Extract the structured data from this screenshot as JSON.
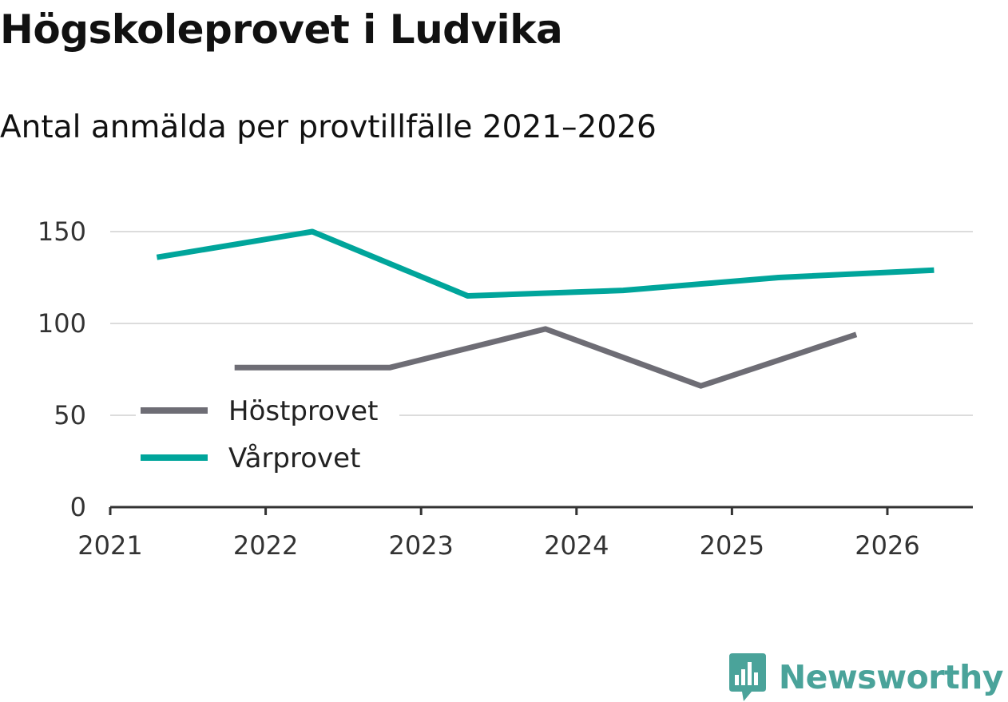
{
  "title": "Högskoleprovet i Ludvika",
  "subtitle": "Antal anmälda per provtillfälle 2021–2026",
  "brand": {
    "name": "Newsworthy",
    "color": "#4aa39a"
  },
  "chart_data": {
    "type": "line",
    "title": "Högskoleprovet i Ludvika",
    "subtitle": "Antal anmälda per provtillfälle 2021–2026",
    "xlabel": "",
    "ylabel": "",
    "x_ticks": [
      "2021",
      "2022",
      "2023",
      "2024",
      "2025",
      "2026"
    ],
    "y_ticks": [
      "0",
      "50",
      "100",
      "150"
    ],
    "xlim": [
      2021,
      2026.55
    ],
    "ylim": [
      0,
      150
    ],
    "grid": true,
    "legend_position": "bottom-left",
    "series": [
      {
        "name": "Höstprovet",
        "color": "#6e6d75",
        "x": [
          2021.8,
          2022.8,
          2023.8,
          2024.8,
          2025.8
        ],
        "y": [
          76,
          76,
          97,
          66,
          94
        ]
      },
      {
        "name": "Vårprovet",
        "color": "#00a59b",
        "x": [
          2021.3,
          2022.3,
          2023.3,
          2024.3,
          2025.3,
          2026.3
        ],
        "y": [
          136,
          150,
          115,
          118,
          125,
          129
        ]
      }
    ]
  }
}
